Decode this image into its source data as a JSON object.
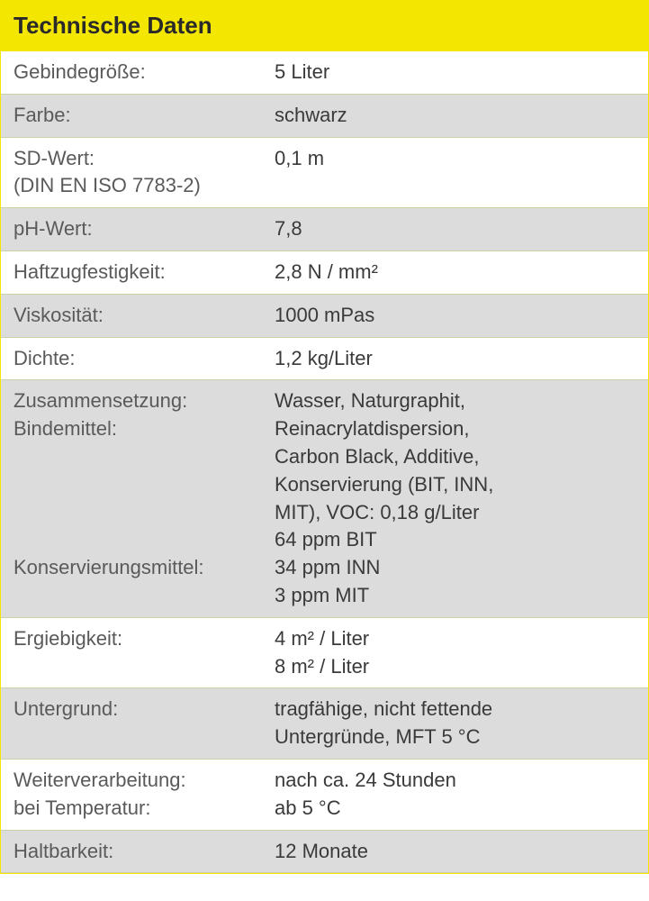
{
  "table": {
    "title": "Technische Daten",
    "header_bg": "#f3e600",
    "header_text_color": "#2a2a2a",
    "row_odd_bg": "#ffffff",
    "row_even_bg": "#dcdcdc",
    "separator_color": "#d0d0a8",
    "label_color": "#5a5a5a",
    "value_color": "#3a3a3a",
    "title_fontsize": 26,
    "body_fontsize": 22,
    "label_column_width": 290,
    "rows": [
      {
        "label_lines": [
          "Gebindegröße:"
        ],
        "value_lines": [
          "5 Liter"
        ],
        "bg": "odd"
      },
      {
        "label_lines": [
          "Farbe:"
        ],
        "value_lines": [
          "schwarz"
        ],
        "bg": "even"
      },
      {
        "label_lines": [
          "SD-Wert:",
          "(DIN EN ISO 7783-2)"
        ],
        "value_lines": [
          "0,1 m"
        ],
        "bg": "odd"
      },
      {
        "label_lines": [
          "pH-Wert:"
        ],
        "value_lines": [
          "7,8"
        ],
        "bg": "even"
      },
      {
        "label_lines": [
          "Haftzugfestigkeit:"
        ],
        "value_lines": [
          "2,8 N / mm²"
        ],
        "bg": "odd"
      },
      {
        "label_lines": [
          "Viskosität:"
        ],
        "value_lines": [
          "1000 mPas"
        ],
        "bg": "even"
      },
      {
        "label_lines": [
          "Dichte:"
        ],
        "value_lines": [
          "1,2 kg/Liter"
        ],
        "bg": "odd"
      },
      {
        "label_lines": [
          "Zusammensetzung:",
          "Bindemittel:",
          "",
          "",
          "",
          "",
          "Konservierungsmittel:"
        ],
        "value_lines": [
          "Wasser, Naturgraphit,",
          "Reinacrylatdispersion,",
          "Carbon Black, Additive,",
          "Konservierung (BIT, INN,",
          "MIT), VOC: 0,18 g/Liter",
          "64 ppm BIT",
          "34 ppm INN",
          "3 ppm MIT"
        ],
        "bg": "even"
      },
      {
        "label_lines": [
          "Ergiebigkeit:"
        ],
        "value_lines": [
          "4 m² / Liter",
          "8 m² / Liter"
        ],
        "bg": "odd"
      },
      {
        "label_lines": [
          "Untergrund:"
        ],
        "value_lines": [
          "tragfähige, nicht fettende",
          "Untergründe, MFT 5 °C"
        ],
        "bg": "even"
      },
      {
        "label_lines": [
          "Weiterverarbeitung:",
          "bei Temperatur:"
        ],
        "value_lines": [
          "nach ca. 24 Stunden",
          "ab 5 °C"
        ],
        "bg": "odd"
      },
      {
        "label_lines": [
          "Haltbarkeit:"
        ],
        "value_lines": [
          "12 Monate"
        ],
        "bg": "even"
      }
    ]
  }
}
